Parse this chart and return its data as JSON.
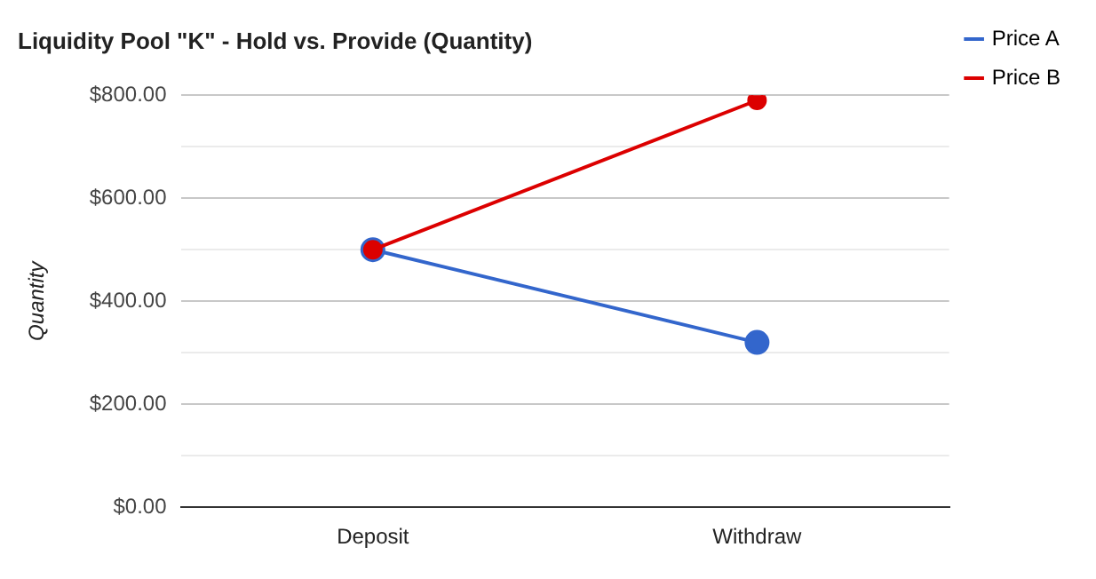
{
  "chart_data": {
    "type": "line",
    "title": "Liquidity Pool \"K\" - Hold vs. Provide (Quantity)",
    "ylabel": "Quantity",
    "categories": [
      "Deposit",
      "Withdraw"
    ],
    "series": [
      {
        "name": "Price A",
        "color": "#3366cc",
        "values": [
          500,
          320
        ]
      },
      {
        "name": "Price B",
        "color": "#dc0000",
        "values": [
          500,
          790
        ]
      }
    ],
    "ylim": [
      0,
      800
    ],
    "yticks": [
      {
        "value": 0,
        "label": "$0.00"
      },
      {
        "value": 100,
        "label": null
      },
      {
        "value": 200,
        "label": "$200.00"
      },
      {
        "value": 300,
        "label": null
      },
      {
        "value": 400,
        "label": "$400.00"
      },
      {
        "value": 500,
        "label": null
      },
      {
        "value": 600,
        "label": "$600.00"
      },
      {
        "value": 700,
        "label": null
      },
      {
        "value": 800,
        "label": "$800.00"
      }
    ],
    "grid": "y",
    "legend": "right",
    "marker": "circle",
    "line_style": "solid"
  }
}
